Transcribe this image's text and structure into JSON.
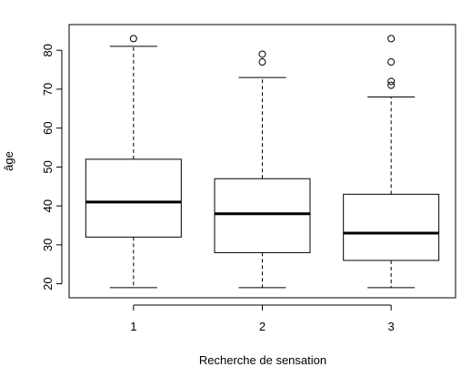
{
  "chart_data": {
    "type": "boxplot",
    "title": "",
    "xlabel": "Recherche de sensation",
    "ylabel": "âge",
    "categories": [
      "1",
      "2",
      "3"
    ],
    "yticks": [
      20,
      30,
      40,
      50,
      60,
      70,
      80
    ],
    "ylim": [
      16.4,
      86.6
    ],
    "boxes": [
      {
        "category": "1",
        "whisker_low": 19,
        "q1": 32,
        "median": 41,
        "q3": 52,
        "whisker_high": 81,
        "outliers": [
          83
        ]
      },
      {
        "category": "2",
        "whisker_low": 19,
        "q1": 28,
        "median": 38,
        "q3": 47,
        "whisker_high": 73,
        "outliers": [
          77,
          79
        ]
      },
      {
        "category": "3",
        "whisker_low": 19,
        "q1": 26,
        "median": 33,
        "q3": 43,
        "whisker_high": 68,
        "outliers": [
          71,
          72,
          77,
          83
        ]
      }
    ]
  }
}
